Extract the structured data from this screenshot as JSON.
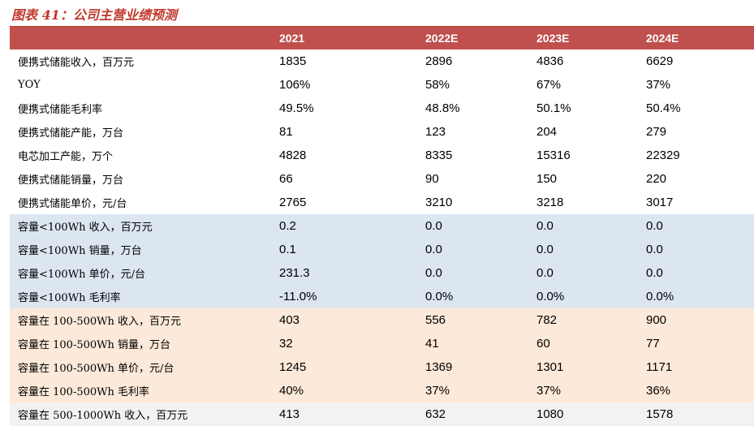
{
  "title": "图表 41：公司主营业绩预测",
  "header": [
    "",
    "2021",
    "2022E",
    "2023E",
    "2024E"
  ],
  "rows": [
    {
      "label": "便携式储能收入，百万元",
      "v": [
        "1835",
        "2896",
        "4836",
        "6629"
      ],
      "band": "white"
    },
    {
      "label": "YOY",
      "v": [
        "106%",
        "58%",
        "67%",
        "37%"
      ],
      "band": "white"
    },
    {
      "label": "便携式储能毛利率",
      "v": [
        "49.5%",
        "48.8%",
        "50.1%",
        "50.4%"
      ],
      "band": "white"
    },
    {
      "label": "便携式储能产能，万台",
      "v": [
        "81",
        "123",
        "204",
        "279"
      ],
      "band": "white"
    },
    {
      "label": "电芯加工产能，万个",
      "v": [
        "4828",
        "8335",
        "15316",
        "22329"
      ],
      "band": "white"
    },
    {
      "label": "便携式储能销量，万台",
      "v": [
        "66",
        "90",
        "150",
        "220"
      ],
      "band": "white"
    },
    {
      "label": "便携式储能单价，元/台",
      "v": [
        "2765",
        "3210",
        "3218",
        "3017"
      ],
      "band": "white"
    },
    {
      "label": "容量<100Wh 收入，百万元",
      "v": [
        "0.2",
        "0.0",
        "0.0",
        "0.0"
      ],
      "band": "blue"
    },
    {
      "label": "容量<100Wh 销量，万台",
      "v": [
        "0.1",
        "0.0",
        "0.0",
        "0.0"
      ],
      "band": "blue"
    },
    {
      "label": "容量<100Wh 单价，元/台",
      "v": [
        "231.3",
        "0.0",
        "0.0",
        "0.0"
      ],
      "band": "blue"
    },
    {
      "label": "容量<100Wh 毛利率",
      "v": [
        "-11.0%",
        "0.0%",
        "0.0%",
        "0.0%"
      ],
      "band": "blue"
    },
    {
      "label": "容量在 100-500Wh 收入，百万元",
      "v": [
        "403",
        "556",
        "782",
        "900"
      ],
      "band": "peach"
    },
    {
      "label": "容量在 100-500Wh 销量，万台",
      "v": [
        "32",
        "41",
        "60",
        "77"
      ],
      "band": "peach"
    },
    {
      "label": "容量在 100-500Wh 单价，元/台",
      "v": [
        "1245",
        "1369",
        "1301",
        "1171"
      ],
      "band": "peach"
    },
    {
      "label": "容量在 100-500Wh 毛利率",
      "v": [
        "40%",
        "37%",
        "37%",
        "36%"
      ],
      "band": "peach"
    },
    {
      "label": "容量在 500-1000Wh 收入，百万元",
      "v": [
        "413",
        "632",
        "1080",
        "1578"
      ],
      "band": "grey"
    }
  ]
}
